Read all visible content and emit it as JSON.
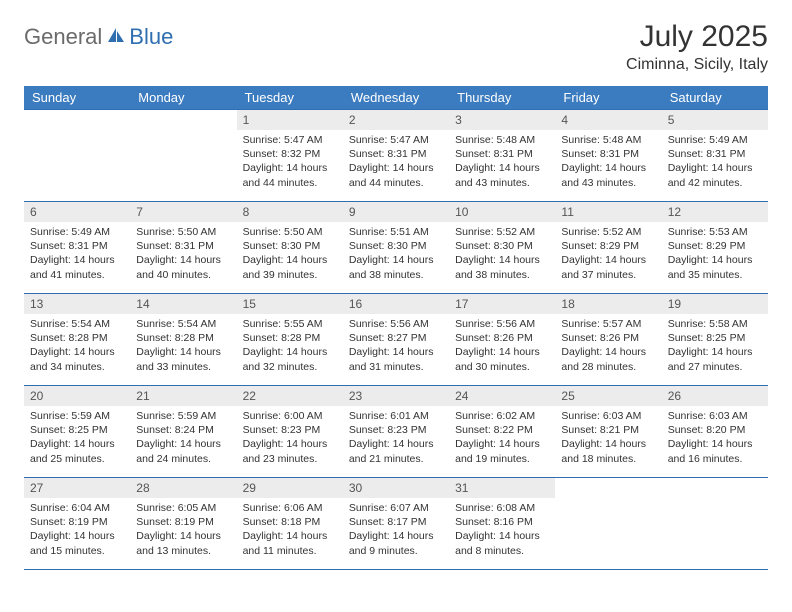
{
  "brand": {
    "part1": "General",
    "part2": "Blue"
  },
  "title": "July 2025",
  "location": "Ciminna, Sicily, Italy",
  "colors": {
    "header_bg": "#3b7bbf",
    "header_fg": "#ffffff",
    "daynum_bg": "#ececec",
    "border": "#2f6fb0",
    "brand_gray": "#6b6b6b",
    "brand_blue": "#2f6fb0"
  },
  "weekdays": [
    "Sunday",
    "Monday",
    "Tuesday",
    "Wednesday",
    "Thursday",
    "Friday",
    "Saturday"
  ],
  "weeks": [
    [
      null,
      null,
      {
        "n": "1",
        "sr": "Sunrise: 5:47 AM",
        "ss": "Sunset: 8:32 PM",
        "d1": "Daylight: 14 hours",
        "d2": "and 44 minutes."
      },
      {
        "n": "2",
        "sr": "Sunrise: 5:47 AM",
        "ss": "Sunset: 8:31 PM",
        "d1": "Daylight: 14 hours",
        "d2": "and 44 minutes."
      },
      {
        "n": "3",
        "sr": "Sunrise: 5:48 AM",
        "ss": "Sunset: 8:31 PM",
        "d1": "Daylight: 14 hours",
        "d2": "and 43 minutes."
      },
      {
        "n": "4",
        "sr": "Sunrise: 5:48 AM",
        "ss": "Sunset: 8:31 PM",
        "d1": "Daylight: 14 hours",
        "d2": "and 43 minutes."
      },
      {
        "n": "5",
        "sr": "Sunrise: 5:49 AM",
        "ss": "Sunset: 8:31 PM",
        "d1": "Daylight: 14 hours",
        "d2": "and 42 minutes."
      }
    ],
    [
      {
        "n": "6",
        "sr": "Sunrise: 5:49 AM",
        "ss": "Sunset: 8:31 PM",
        "d1": "Daylight: 14 hours",
        "d2": "and 41 minutes."
      },
      {
        "n": "7",
        "sr": "Sunrise: 5:50 AM",
        "ss": "Sunset: 8:31 PM",
        "d1": "Daylight: 14 hours",
        "d2": "and 40 minutes."
      },
      {
        "n": "8",
        "sr": "Sunrise: 5:50 AM",
        "ss": "Sunset: 8:30 PM",
        "d1": "Daylight: 14 hours",
        "d2": "and 39 minutes."
      },
      {
        "n": "9",
        "sr": "Sunrise: 5:51 AM",
        "ss": "Sunset: 8:30 PM",
        "d1": "Daylight: 14 hours",
        "d2": "and 38 minutes."
      },
      {
        "n": "10",
        "sr": "Sunrise: 5:52 AM",
        "ss": "Sunset: 8:30 PM",
        "d1": "Daylight: 14 hours",
        "d2": "and 38 minutes."
      },
      {
        "n": "11",
        "sr": "Sunrise: 5:52 AM",
        "ss": "Sunset: 8:29 PM",
        "d1": "Daylight: 14 hours",
        "d2": "and 37 minutes."
      },
      {
        "n": "12",
        "sr": "Sunrise: 5:53 AM",
        "ss": "Sunset: 8:29 PM",
        "d1": "Daylight: 14 hours",
        "d2": "and 35 minutes."
      }
    ],
    [
      {
        "n": "13",
        "sr": "Sunrise: 5:54 AM",
        "ss": "Sunset: 8:28 PM",
        "d1": "Daylight: 14 hours",
        "d2": "and 34 minutes."
      },
      {
        "n": "14",
        "sr": "Sunrise: 5:54 AM",
        "ss": "Sunset: 8:28 PM",
        "d1": "Daylight: 14 hours",
        "d2": "and 33 minutes."
      },
      {
        "n": "15",
        "sr": "Sunrise: 5:55 AM",
        "ss": "Sunset: 8:28 PM",
        "d1": "Daylight: 14 hours",
        "d2": "and 32 minutes."
      },
      {
        "n": "16",
        "sr": "Sunrise: 5:56 AM",
        "ss": "Sunset: 8:27 PM",
        "d1": "Daylight: 14 hours",
        "d2": "and 31 minutes."
      },
      {
        "n": "17",
        "sr": "Sunrise: 5:56 AM",
        "ss": "Sunset: 8:26 PM",
        "d1": "Daylight: 14 hours",
        "d2": "and 30 minutes."
      },
      {
        "n": "18",
        "sr": "Sunrise: 5:57 AM",
        "ss": "Sunset: 8:26 PM",
        "d1": "Daylight: 14 hours",
        "d2": "and 28 minutes."
      },
      {
        "n": "19",
        "sr": "Sunrise: 5:58 AM",
        "ss": "Sunset: 8:25 PM",
        "d1": "Daylight: 14 hours",
        "d2": "and 27 minutes."
      }
    ],
    [
      {
        "n": "20",
        "sr": "Sunrise: 5:59 AM",
        "ss": "Sunset: 8:25 PM",
        "d1": "Daylight: 14 hours",
        "d2": "and 25 minutes."
      },
      {
        "n": "21",
        "sr": "Sunrise: 5:59 AM",
        "ss": "Sunset: 8:24 PM",
        "d1": "Daylight: 14 hours",
        "d2": "and 24 minutes."
      },
      {
        "n": "22",
        "sr": "Sunrise: 6:00 AM",
        "ss": "Sunset: 8:23 PM",
        "d1": "Daylight: 14 hours",
        "d2": "and 23 minutes."
      },
      {
        "n": "23",
        "sr": "Sunrise: 6:01 AM",
        "ss": "Sunset: 8:23 PM",
        "d1": "Daylight: 14 hours",
        "d2": "and 21 minutes."
      },
      {
        "n": "24",
        "sr": "Sunrise: 6:02 AM",
        "ss": "Sunset: 8:22 PM",
        "d1": "Daylight: 14 hours",
        "d2": "and 19 minutes."
      },
      {
        "n": "25",
        "sr": "Sunrise: 6:03 AM",
        "ss": "Sunset: 8:21 PM",
        "d1": "Daylight: 14 hours",
        "d2": "and 18 minutes."
      },
      {
        "n": "26",
        "sr": "Sunrise: 6:03 AM",
        "ss": "Sunset: 8:20 PM",
        "d1": "Daylight: 14 hours",
        "d2": "and 16 minutes."
      }
    ],
    [
      {
        "n": "27",
        "sr": "Sunrise: 6:04 AM",
        "ss": "Sunset: 8:19 PM",
        "d1": "Daylight: 14 hours",
        "d2": "and 15 minutes."
      },
      {
        "n": "28",
        "sr": "Sunrise: 6:05 AM",
        "ss": "Sunset: 8:19 PM",
        "d1": "Daylight: 14 hours",
        "d2": "and 13 minutes."
      },
      {
        "n": "29",
        "sr": "Sunrise: 6:06 AM",
        "ss": "Sunset: 8:18 PM",
        "d1": "Daylight: 14 hours",
        "d2": "and 11 minutes."
      },
      {
        "n": "30",
        "sr": "Sunrise: 6:07 AM",
        "ss": "Sunset: 8:17 PM",
        "d1": "Daylight: 14 hours",
        "d2": "and 9 minutes."
      },
      {
        "n": "31",
        "sr": "Sunrise: 6:08 AM",
        "ss": "Sunset: 8:16 PM",
        "d1": "Daylight: 14 hours",
        "d2": "and 8 minutes."
      },
      null,
      null
    ]
  ]
}
